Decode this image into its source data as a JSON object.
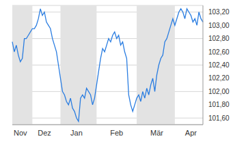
{
  "chart_data": {
    "type": "line",
    "categories": [
      null,
      null,
      null,
      null,
      "Nov",
      null,
      null,
      null,
      null,
      null,
      null,
      null,
      null,
      null,
      null,
      null,
      "Dez",
      null,
      null,
      null,
      null,
      null,
      null,
      null,
      null,
      null,
      null,
      null,
      null,
      null,
      null,
      null,
      "Jan",
      null,
      null,
      null,
      null,
      null,
      null,
      null,
      null,
      null,
      null,
      null,
      null,
      null,
      null,
      null,
      null,
      null,
      null,
      null,
      "Feb",
      null,
      null,
      null,
      null,
      null,
      null,
      null,
      null,
      null,
      null,
      null,
      null,
      null,
      null,
      null,
      null,
      null,
      null,
      null,
      "Mär",
      null,
      null,
      null,
      null,
      null,
      null,
      null,
      null,
      null,
      null,
      null,
      null,
      null,
      null,
      null,
      null,
      "Apr",
      null,
      null,
      null,
      null,
      null,
      null
    ],
    "values": [
      102.75,
      102.6,
      102.7,
      102.55,
      102.45,
      102.5,
      102.8,
      102.8,
      102.85,
      102.9,
      102.95,
      102.95,
      103.0,
      103.1,
      103.25,
      103.15,
      103.2,
      103.05,
      103.0,
      102.95,
      102.8,
      102.7,
      102.6,
      102.4,
      102.2,
      102.0,
      101.95,
      101.85,
      101.8,
      101.9,
      101.75,
      101.7,
      101.6,
      101.55,
      101.9,
      101.95,
      101.9,
      102.05,
      102.0,
      101.95,
      101.8,
      101.9,
      102.1,
      102.3,
      102.5,
      102.65,
      102.6,
      102.7,
      102.8,
      102.75,
      102.85,
      102.9,
      102.8,
      102.85,
      102.7,
      102.75,
      102.6,
      102.5,
      101.95,
      101.8,
      101.7,
      101.8,
      101.9,
      101.95,
      101.85,
      102.0,
      101.9,
      102.05,
      101.95,
      102.1,
      102.2,
      102.0,
      102.25,
      102.4,
      102.5,
      102.55,
      102.75,
      102.8,
      102.9,
      103.0,
      103.1,
      103.0,
      103.1,
      103.2,
      103.25,
      103.2,
      103.1,
      103.25,
      103.2,
      103.15,
      103.05,
      103.1,
      103.0,
      103.2,
      103.1,
      103.05
    ],
    "color": "#2a7de1",
    "ylim": [
      101.5,
      103.3
    ],
    "yticks": [
      {
        "value": 101.6,
        "label": "101,60"
      },
      {
        "value": 101.8,
        "label": "101,80"
      },
      {
        "value": 102.0,
        "label": "102,00"
      },
      {
        "value": 102.2,
        "label": "102,20"
      },
      {
        "value": 102.4,
        "label": "102,40"
      },
      {
        "value": 102.6,
        "label": "102,60"
      },
      {
        "value": 102.8,
        "label": "102,80"
      },
      {
        "value": 103.0,
        "label": "103,00"
      },
      {
        "value": 103.2,
        "label": "103,20"
      }
    ],
    "grid": true
  }
}
